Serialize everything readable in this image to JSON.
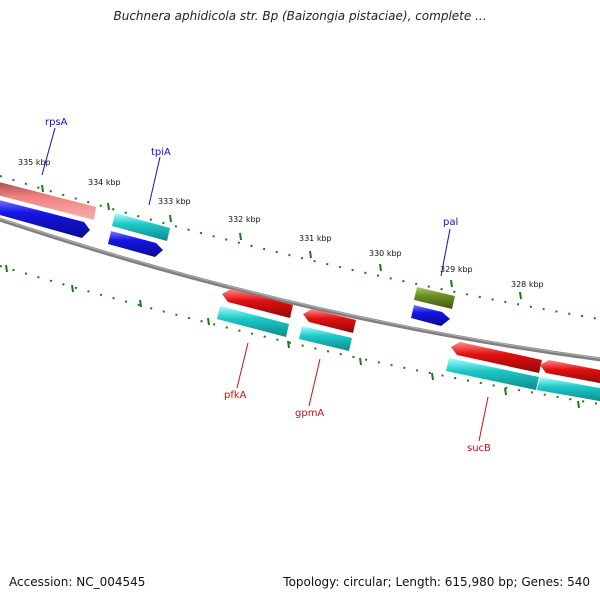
{
  "header": {
    "title": "Buchnera aphidicola str. Bp (Baizongia pistaciae), complete ..."
  },
  "footer": {
    "accession": "Accession: NC_004545",
    "stats": "Topology: circular; Length: 615,980 bp; Genes: 540"
  },
  "ruler": {
    "labels": [
      "335 kbp",
      "334 kbp",
      "333 kbp",
      "332 kbp",
      "331 kbp",
      "330 kbp",
      "329 kbp",
      "328 kbp"
    ]
  },
  "genes": {
    "forward": [
      "rpsA",
      "tpiA",
      "pal"
    ],
    "reverse": [
      "pfkA",
      "gpmA",
      "sucB"
    ]
  },
  "colors": {
    "backbone": "#808080",
    "tick": "#1a7a1a",
    "cds_blue": "#1515e6",
    "cds_cyan": "#1ec8c8",
    "cds_red": "#e01010",
    "cds_pink": "#f08080",
    "cds_olive": "#6b8e23"
  }
}
